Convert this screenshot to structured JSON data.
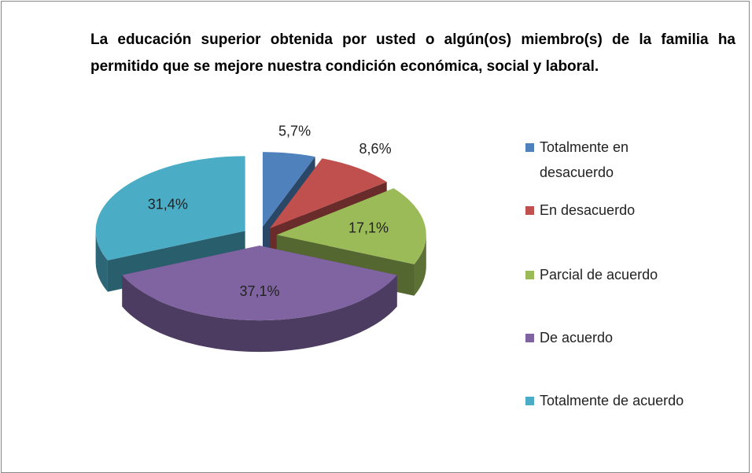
{
  "chart_data": {
    "type": "pie3d",
    "title": "La educación superior obtenida por usted o algún(os) miembro(s) de la familia ha permitido que se mejore nuestra condición económica, social y laboral.",
    "categories": [
      "Totalmente en desacuerdo",
      "En desacuerdo",
      "Parcial de acuerdo",
      "De acuerdo",
      "Totalmente de acuerdo"
    ],
    "values": [
      5.7,
      8.6,
      17.1,
      37.1,
      31.4
    ],
    "value_labels": [
      "5,7%",
      "8,6%",
      "17,1%",
      "37,1%",
      "31,4%"
    ],
    "colors": [
      "#4f81bd",
      "#c0504d",
      "#9bbb59",
      "#8064a2",
      "#4bacc6"
    ],
    "legend": "right"
  }
}
